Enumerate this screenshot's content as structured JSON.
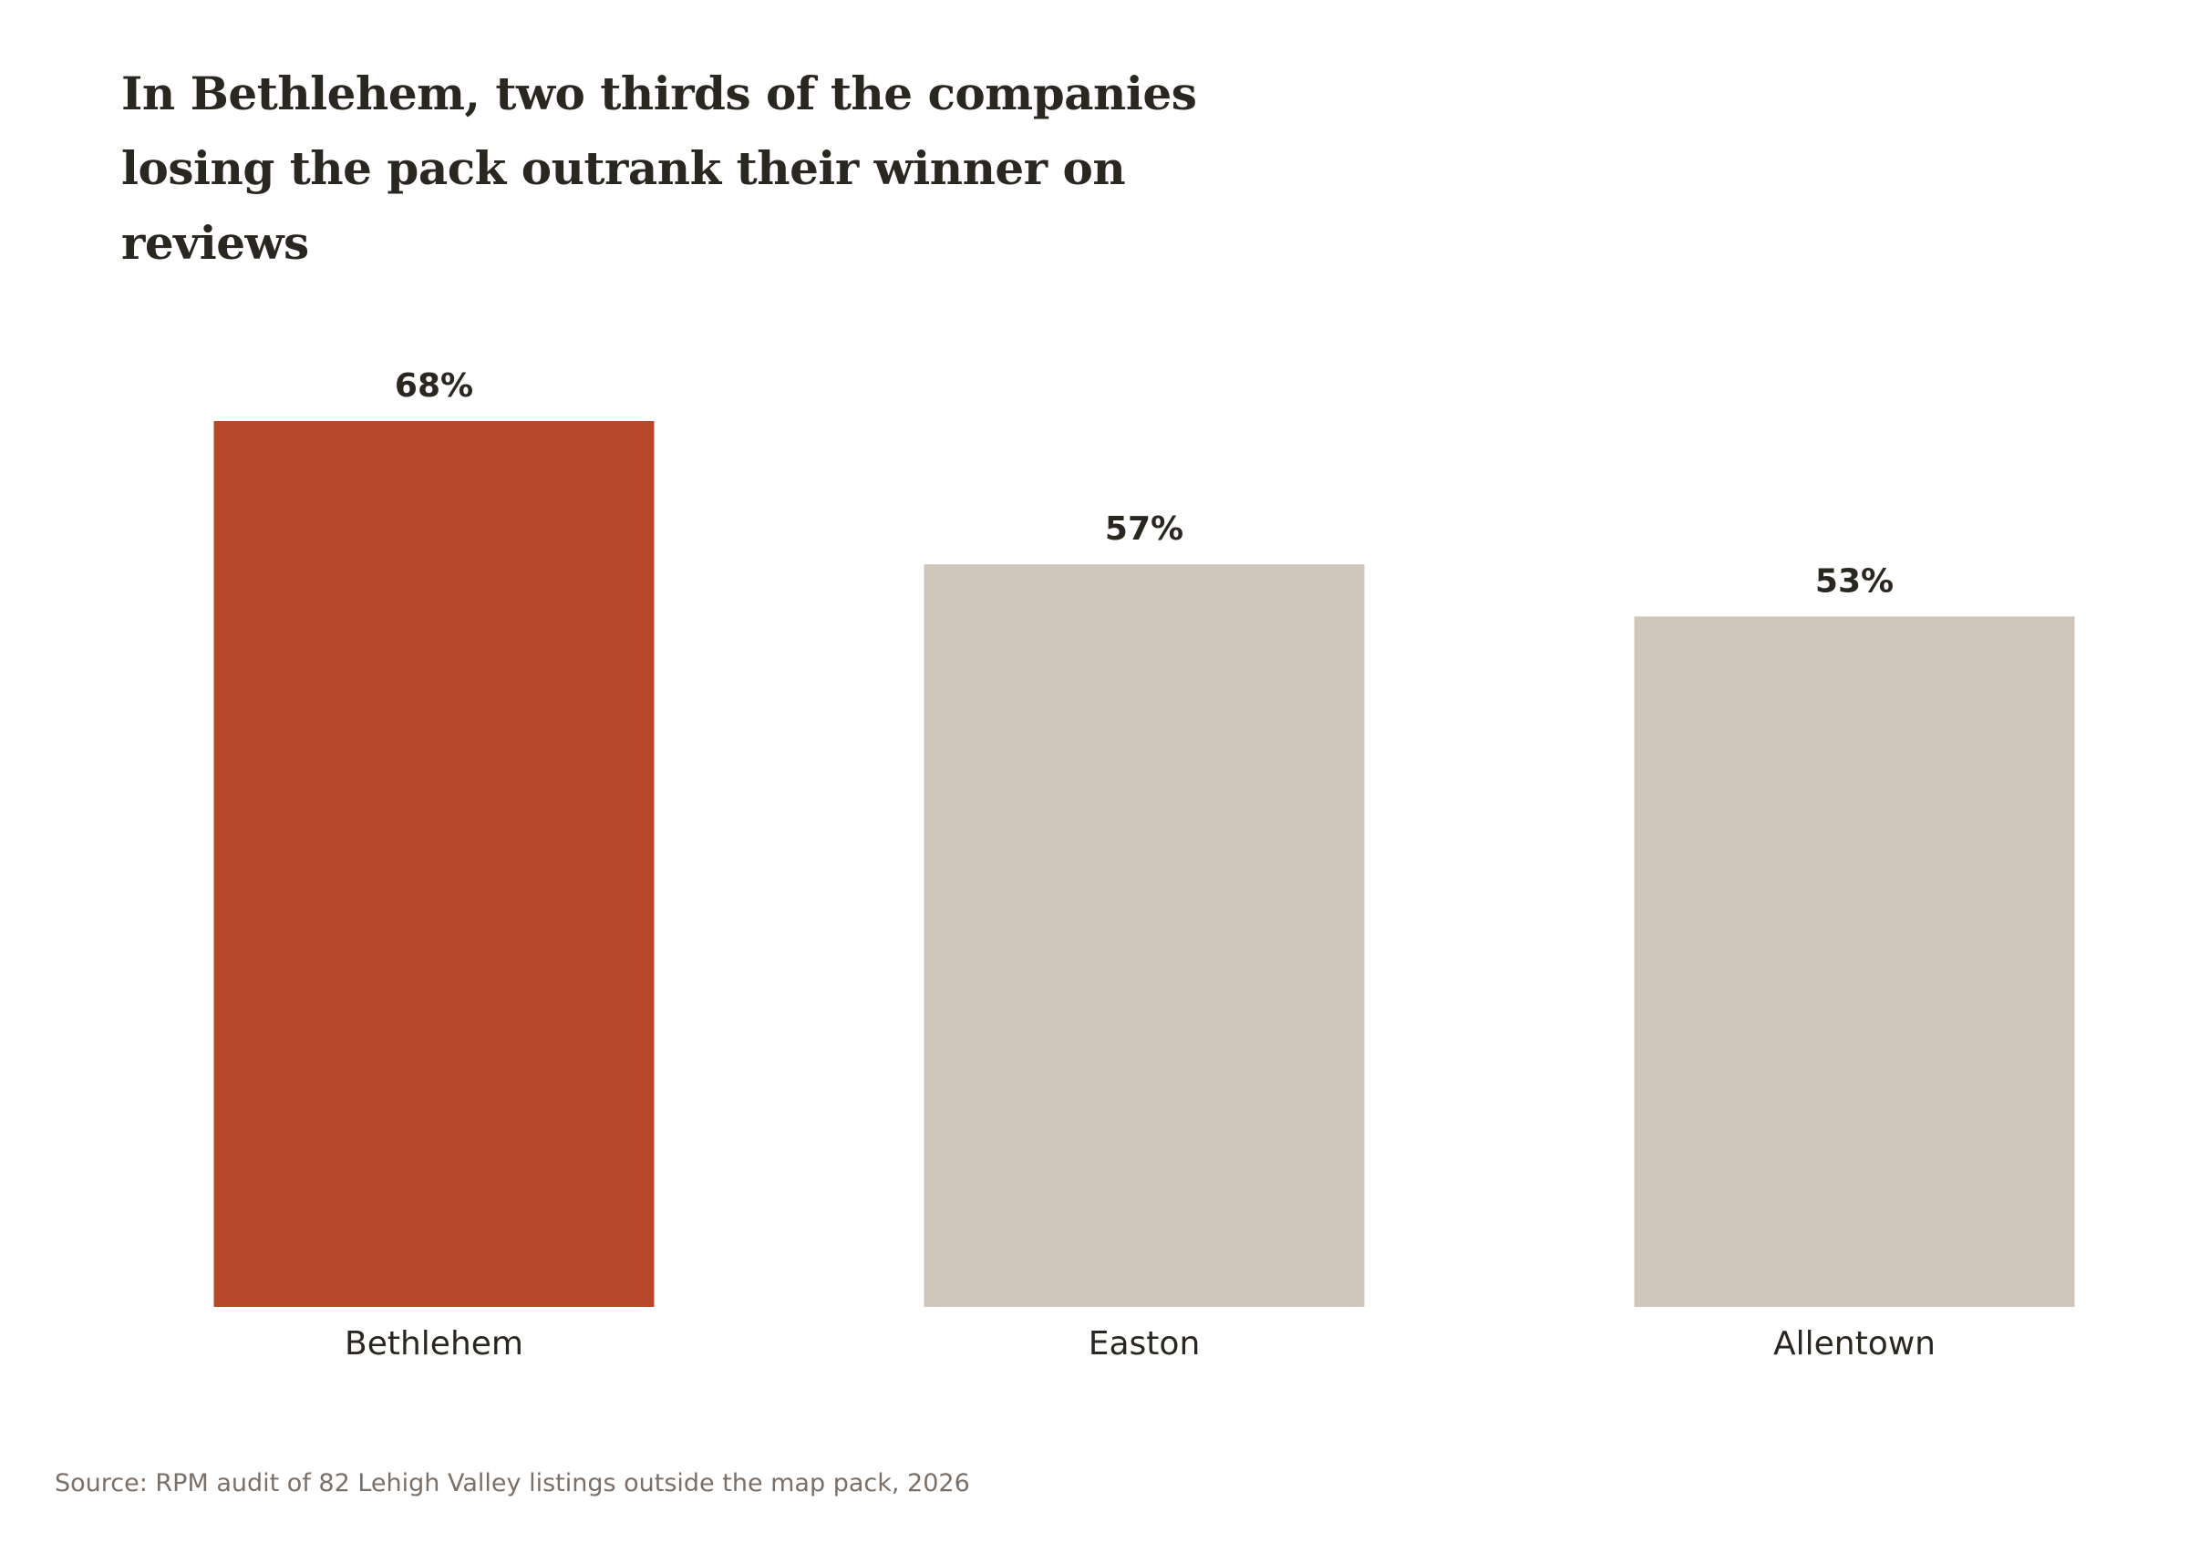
{
  "chart_data": {
    "type": "bar",
    "title": "In Bethlehem, two thirds of the companies losing the pack outrank their winner on reviews",
    "categories": [
      "Bethlehem",
      "Easton",
      "Allentown"
    ],
    "values": [
      68,
      57,
      53
    ],
    "value_labels": [
      "68%",
      "57%",
      "53%"
    ],
    "highlight_index": 0,
    "colors": {
      "highlight": "#b7482a",
      "default": "#d0c5ba",
      "text": "#2a2620",
      "source_text": "#7a7068"
    },
    "xlabel": "",
    "ylabel": "",
    "ylim": [
      0,
      68
    ],
    "grid": false,
    "legend": "none"
  },
  "source": "Source: RPM audit of 82 Lehigh Valley listings outside the map pack, 2026"
}
